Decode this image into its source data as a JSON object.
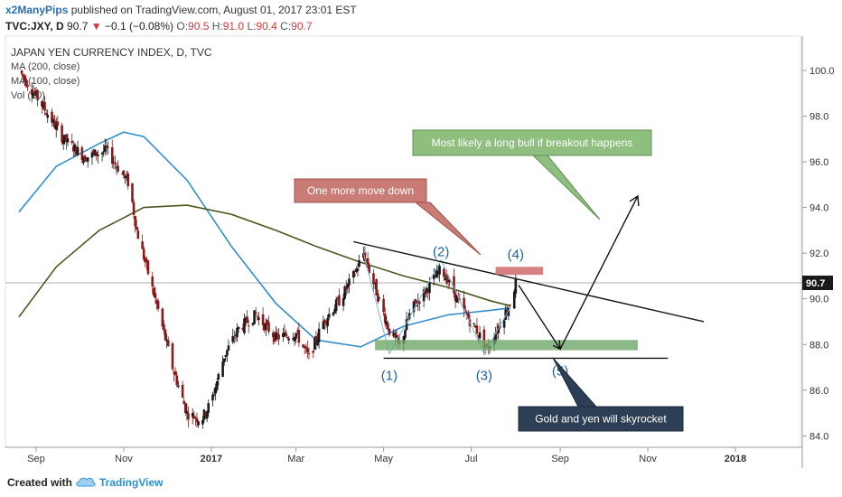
{
  "header": {
    "author": "x2ManyPips",
    "published_text": "published on TradingView.com, August 01, 2017 23:01 EST",
    "symbol": "TVC:JXY, D",
    "last": "90.7",
    "change": "−0.1 (−0.08%)",
    "open_label": "O:",
    "open": "90.5",
    "high_label": "H:",
    "high": "91.0",
    "low_label": "L:",
    "low": "90.4",
    "close_label": "C:",
    "close": "90.7"
  },
  "legend": {
    "title": "JAPAN YEN CURRENCY INDEX, D, TVC",
    "ma200": "MA (200, close)",
    "ma100": "MA (100, close)",
    "vol": "Vol (20)"
  },
  "annotations": {
    "callout_bull": "Most likely a long bull if breakout happens",
    "callout_down": "One more move down",
    "callout_gold": "Gold and yen will skyrocket",
    "wave_labels": [
      "(1)",
      "(2)",
      "(3)",
      "(4)",
      "(5)"
    ]
  },
  "footer": {
    "created_with": "Created with",
    "brand": "TradingView"
  },
  "colors": {
    "up_candle": "#1a1a1a",
    "down_candle": "#8b1a1a",
    "ma100": "#2f8fc9",
    "ma200": "#4a5a1e",
    "wave_label": "#1f5f9e",
    "green_zone": "#6fa86a",
    "red_zone": "#d06a6a",
    "price_badge": "#1a1a1a"
  },
  "chart_data": {
    "type": "line",
    "title": "JAPAN YEN CURRENCY INDEX, D, TVC",
    "y_ticks": [
      "100.0",
      "98.0",
      "96.0",
      "94.0",
      "92.0",
      "90.0",
      "88.0",
      "86.0",
      "84.0"
    ],
    "x_ticks": [
      "Sep",
      "Nov",
      "2017",
      "Mar",
      "May",
      "Jul",
      "Sep",
      "Nov",
      "2018"
    ],
    "ylim": [
      83.5,
      101.5
    ],
    "last_price": "90.7",
    "series": [
      {
        "name": "price",
        "x": [
          "2016-08-20",
          "2016-09-05",
          "2016-09-20",
          "2016-10-05",
          "2016-10-20",
          "2016-11-05",
          "2016-11-10",
          "2016-11-25",
          "2016-12-05",
          "2016-12-15",
          "2016-12-25",
          "2017-01-01",
          "2017-01-10",
          "2017-01-20",
          "2017-02-01",
          "2017-02-15",
          "2017-03-01",
          "2017-03-10",
          "2017-03-20",
          "2017-04-01",
          "2017-04-10",
          "2017-04-17",
          "2017-04-25",
          "2017-05-05",
          "2017-05-12",
          "2017-05-20",
          "2017-06-01",
          "2017-06-10",
          "2017-06-15",
          "2017-06-25",
          "2017-07-05",
          "2017-07-12",
          "2017-07-20",
          "2017-07-28",
          "2017-08-01"
        ],
        "values": [
          100.0,
          98.5,
          97.0,
          96.2,
          96.5,
          95.0,
          93.0,
          89.5,
          87.0,
          85.0,
          84.7,
          85.5,
          87.5,
          88.7,
          89.3,
          88.3,
          88.5,
          87.4,
          89.0,
          90.0,
          91.0,
          92.0,
          90.5,
          88.6,
          87.9,
          89.5,
          90.5,
          91.3,
          90.8,
          89.5,
          88.6,
          87.8,
          88.8,
          89.8,
          90.7
        ]
      },
      {
        "name": "MA (100, close)",
        "x": [
          "2016-08-20",
          "2016-09-15",
          "2016-10-15",
          "2016-11-01",
          "2016-11-15",
          "2016-12-15",
          "2017-01-15",
          "2017-02-15",
          "2017-03-15",
          "2017-04-15",
          "2017-05-15",
          "2017-06-15",
          "2017-07-15",
          "2017-07-28"
        ],
        "values": [
          93.8,
          95.8,
          96.8,
          97.3,
          97.1,
          95.2,
          92.3,
          89.8,
          88.2,
          87.9,
          88.8,
          89.3,
          89.5,
          89.6
        ]
      },
      {
        "name": "MA (200, close)",
        "x": [
          "2016-08-20",
          "2016-09-15",
          "2016-10-15",
          "2016-11-15",
          "2016-12-15",
          "2017-01-15",
          "2017-02-15",
          "2017-03-15",
          "2017-04-15",
          "2017-05-15",
          "2017-06-15",
          "2017-07-15",
          "2017-07-28"
        ],
        "values": [
          89.2,
          91.4,
          93.0,
          94.0,
          94.1,
          93.7,
          93.0,
          92.3,
          91.6,
          91.0,
          90.5,
          89.9,
          89.7
        ]
      }
    ],
    "annotations": [
      {
        "label": "(1)",
        "x": "2017-05-05",
        "y": 87.4
      },
      {
        "label": "(2)",
        "x": "2017-06-10",
        "y": 91.7
      },
      {
        "label": "(3)",
        "x": "2017-07-10",
        "y": 87.4
      },
      {
        "label": "(4)",
        "x": "2017-08-01",
        "y": 91.6
      },
      {
        "label": "(5)",
        "x": "2017-09-01",
        "y": 87.6
      }
    ]
  }
}
